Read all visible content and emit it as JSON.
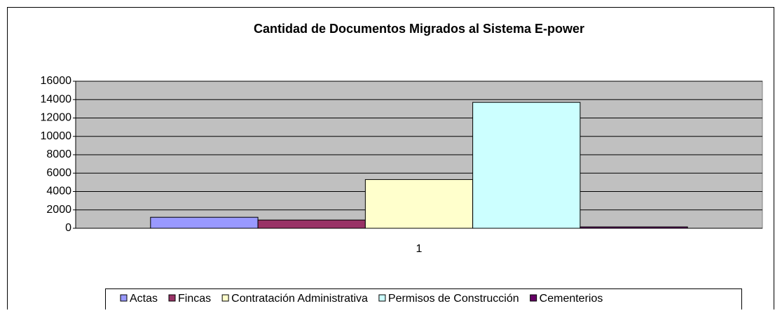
{
  "chart_data": {
    "type": "bar",
    "title": "Cantidad de Documentos Migrados al Sistema E-power",
    "categories": [
      "1"
    ],
    "series": [
      {
        "name": "Actas",
        "color": "#9999ff",
        "values": [
          1200
        ]
      },
      {
        "name": "Fincas",
        "color": "#993366",
        "values": [
          900
        ]
      },
      {
        "name": "Contratación Administrativa",
        "color": "#ffffcc",
        "values": [
          5300
        ]
      },
      {
        "name": "Permisos de Construcción",
        "color": "#ccffff",
        "values": [
          13700
        ]
      },
      {
        "name": "Cementerios",
        "color": "#660066",
        "values": [
          150
        ]
      }
    ],
    "ylim": [
      0,
      16000
    ],
    "yticks": [
      0,
      2000,
      4000,
      6000,
      8000,
      10000,
      12000,
      14000,
      16000
    ],
    "grid": true,
    "legend": "bottom"
  }
}
